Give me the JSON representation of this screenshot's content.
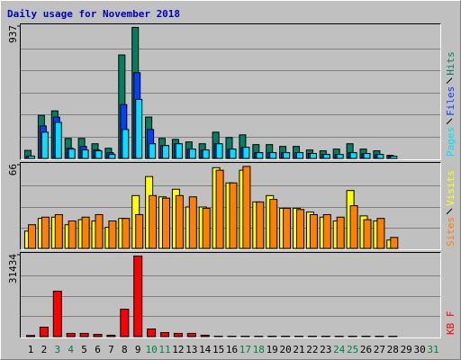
{
  "title": "Daily usage for November 2018",
  "chart_data": [
    {
      "type": "bar",
      "ylim": [
        0,
        937
      ],
      "yticks": [
        937
      ],
      "series": [
        {
          "name": "Hits",
          "color": "#008060",
          "values": [
            60,
            308,
            340,
            145,
            145,
            107,
            75,
            736,
            931,
            296,
            145,
            138,
            120,
            107,
            189,
            151,
            170,
            101,
            101,
            88,
            88,
            63,
            57,
            69,
            107,
            69,
            57,
            25,
            0,
            0,
            0
          ]
        },
        {
          "name": "Files",
          "color": "#0040ff",
          "values": [
            20,
            233,
            296,
            75,
            88,
            63,
            44,
            384,
            610,
            208,
            94,
            107,
            69,
            63,
            107,
            69,
            82,
            44,
            44,
            44,
            44,
            38,
            31,
            31,
            44,
            38,
            31,
            19,
            0,
            0,
            0
          ]
        },
        {
          "name": "Pages",
          "color": "#00e0ff",
          "values": [
            20,
            189,
            258,
            69,
            63,
            57,
            31,
            208,
            421,
            107,
            94,
            107,
            69,
            63,
            107,
            69,
            82,
            44,
            44,
            44,
            44,
            38,
            31,
            31,
            44,
            38,
            31,
            19,
            0,
            0,
            0
          ]
        }
      ]
    },
    {
      "type": "bar",
      "ylim": [
        0,
        66
      ],
      "yticks": [
        66
      ],
      "series": [
        {
          "name": "Visits",
          "color": "#ffff00",
          "values": [
            14,
            24,
            25,
            19,
            23,
            22,
            17,
            24,
            42,
            57,
            41,
            47,
            33,
            33,
            64,
            52,
            62,
            37,
            42,
            32,
            32,
            29,
            25,
            22,
            46,
            26,
            22,
            7,
            0,
            0,
            0
          ]
        },
        {
          "name": "Sites",
          "color": "#ff8000",
          "values": [
            19,
            25,
            27,
            22,
            25,
            27,
            22,
            24,
            27,
            42,
            40,
            42,
            41,
            32,
            62,
            52,
            65,
            37,
            39,
            32,
            31,
            27,
            27,
            25,
            34,
            23,
            24,
            9,
            0,
            0,
            0
          ]
        }
      ]
    },
    {
      "type": "bar",
      "ylim": [
        0,
        31434
      ],
      "yticks": [
        31434
      ],
      "categories": [
        "1",
        "2",
        "3",
        "4",
        "5",
        "6",
        "7",
        "8",
        "9",
        "10",
        "11",
        "12",
        "13",
        "14",
        "15",
        "16",
        "17",
        "18",
        "19",
        "20",
        "21",
        "22",
        "23",
        "24",
        "25",
        "26",
        "27",
        "28",
        "29",
        "30",
        "31"
      ],
      "category_colors": [
        "#000000",
        "#000000",
        "#008040",
        "#008040",
        "#000000",
        "#000000",
        "#000000",
        "#000000",
        "#000000",
        "#008040",
        "#008040",
        "#000000",
        "#000000",
        "#000000",
        "#000000",
        "#000000",
        "#008040",
        "#008040",
        "#000000",
        "#000000",
        "#000000",
        "#000000",
        "#000000",
        "#008040",
        "#008040",
        "#000000",
        "#000000",
        "#000000",
        "#000000",
        "#000000",
        "#008040"
      ],
      "series": [
        {
          "name": "KB F",
          "color": "#ff0000",
          "values": [
            600,
            3800,
            17600,
            1400,
            1400,
            1000,
            700,
            10700,
            31100,
            3100,
            1700,
            1400,
            1400,
            700,
            300,
            300,
            300,
            300,
            300,
            300,
            300,
            300,
            300,
            300,
            300,
            300,
            300,
            300,
            0,
            0,
            0
          ]
        }
      ]
    }
  ]
}
